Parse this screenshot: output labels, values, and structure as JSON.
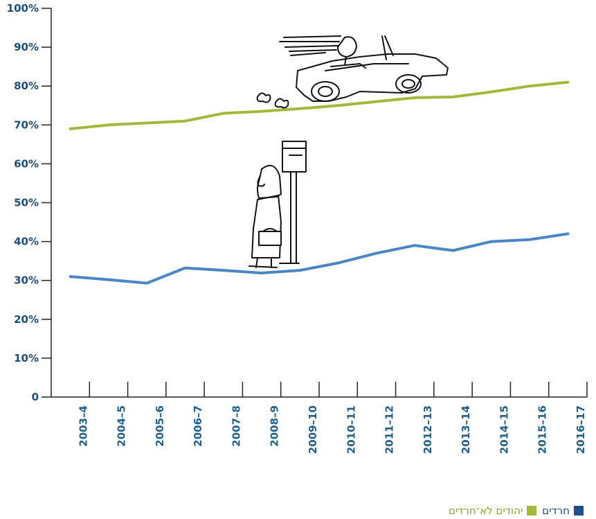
{
  "chart_data": {
    "type": "line",
    "categories": [
      "2003–4",
      "2004–5",
      "2005–6",
      "2006–7",
      "2007–8",
      "2008–9",
      "2009–10",
      "2010–11",
      "2011–12",
      "2012–13",
      "2013–14",
      "2014–15",
      "2015–16",
      "2016–17"
    ],
    "series": [
      {
        "name": "יהודים לא־חרדים",
        "color": "#a2b93b",
        "values": [
          69,
          70,
          70.5,
          71,
          73,
          73.5,
          74.2,
          75,
          76,
          77,
          77.2,
          78.5,
          80,
          81
        ]
      },
      {
        "name": "חרדים",
        "color": "#4a86c5",
        "values": [
          31,
          30.2,
          29.3,
          33.2,
          32.6,
          31.9,
          32.6,
          34.5,
          37,
          39,
          37.7,
          40,
          40.5,
          42
        ]
      }
    ],
    "y_ticks": [
      "0",
      "10%",
      "20%",
      "30%",
      "40%",
      "50%",
      "60%",
      "70%",
      "80%",
      "90%",
      "100%"
    ],
    "ylim": [
      0,
      100
    ],
    "grid": false,
    "legend_position": "bottom-right",
    "legend_swatch_colors": {
      "haredi": "#1f4e8c",
      "non_haredi": "#a2b93b"
    }
  },
  "illustrations": {
    "car": "convertible-car-with-driver",
    "bus_stop": "person-waiting-at-bus-stop"
  }
}
